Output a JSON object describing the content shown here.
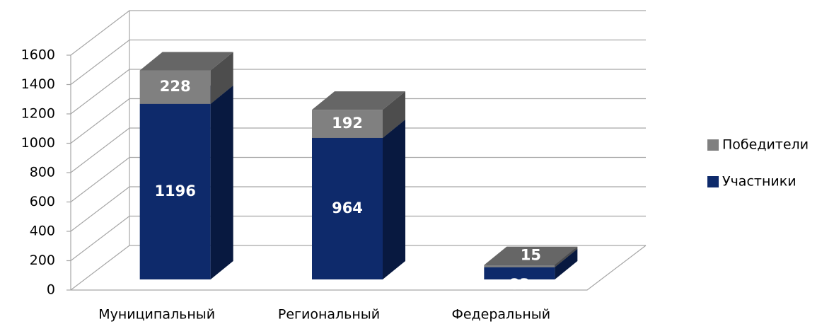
{
  "chart_data": {
    "type": "bar3d_stacked",
    "categories": [
      "Муниципальный",
      "Региональный",
      "Федеральный"
    ],
    "series": [
      {
        "name": "Участники",
        "color": "#0e2a6b",
        "values": [
          1196,
          964,
          83
        ]
      },
      {
        "name": "Победители",
        "color": "#808080",
        "values": [
          228,
          192,
          15
        ]
      }
    ],
    "ylim": [
      0,
      1600
    ],
    "yticks": [
      0,
      200,
      400,
      600,
      800,
      1000,
      1200,
      1400,
      1600
    ],
    "grid": true,
    "legend": "right"
  }
}
